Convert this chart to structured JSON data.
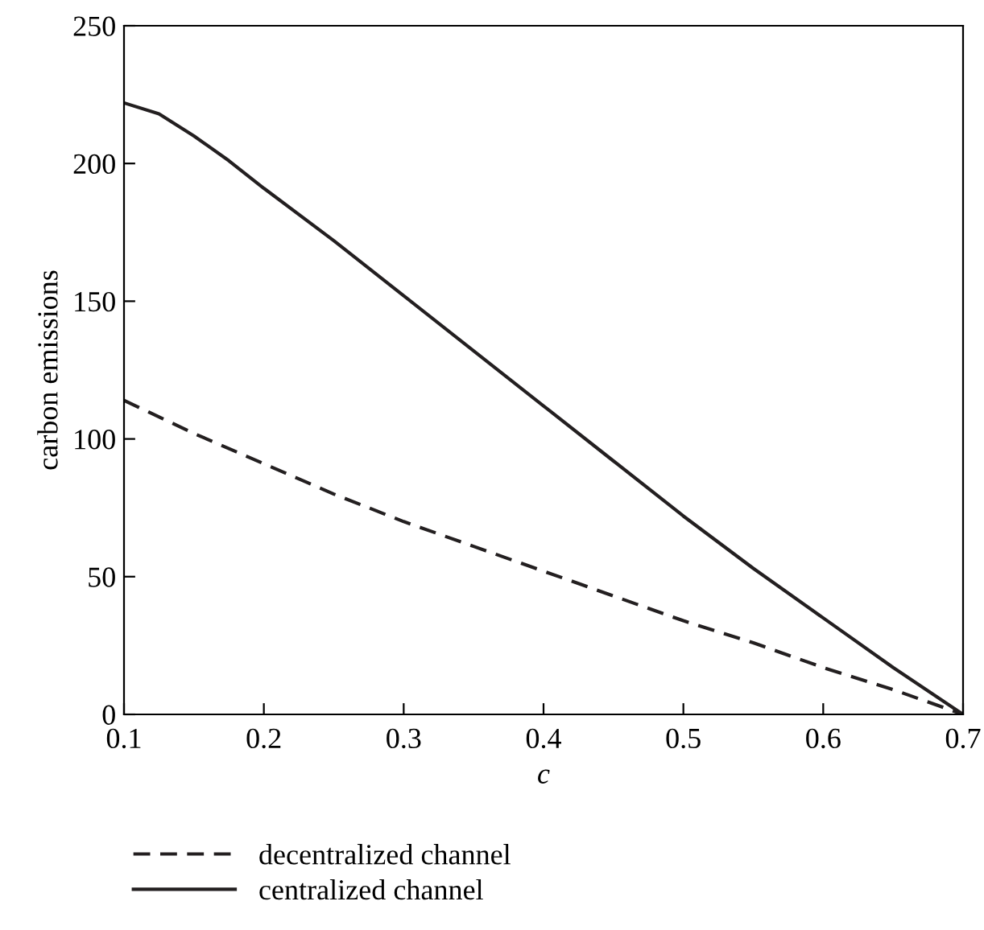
{
  "chart_data": {
    "type": "line",
    "xlabel": "c",
    "ylabel": "carbon emissions",
    "xlim": [
      0.1,
      0.7
    ],
    "xticks": [
      0.1,
      0.2,
      0.3,
      0.4,
      0.5,
      0.6,
      0.7
    ],
    "ylim": [
      0,
      250
    ],
    "yticks": [
      0,
      50,
      100,
      150,
      200,
      250
    ],
    "grid": false,
    "legend": "bottom",
    "marker": "none",
    "series": [
      {
        "name": "decentralized channel",
        "color": "#231f20",
        "line_style": "dashed",
        "x": [
          0.1,
          0.15,
          0.2,
          0.25,
          0.3,
          0.35,
          0.4,
          0.45,
          0.5,
          0.55,
          0.6,
          0.65,
          0.7
        ],
        "values": [
          114,
          102,
          91,
          80,
          70,
          61,
          52,
          43,
          34,
          26,
          17,
          9,
          0
        ]
      },
      {
        "name": "centralized channel",
        "color": "#231f20",
        "line_style": "solid",
        "x": [
          0.1,
          0.125,
          0.15,
          0.175,
          0.2,
          0.25,
          0.3,
          0.35,
          0.4,
          0.45,
          0.5,
          0.55,
          0.6,
          0.65,
          0.7
        ],
        "values": [
          222,
          218,
          210,
          201,
          191,
          172,
          152,
          132,
          112,
          92,
          72,
          53,
          35,
          17,
          0
        ]
      }
    ]
  }
}
